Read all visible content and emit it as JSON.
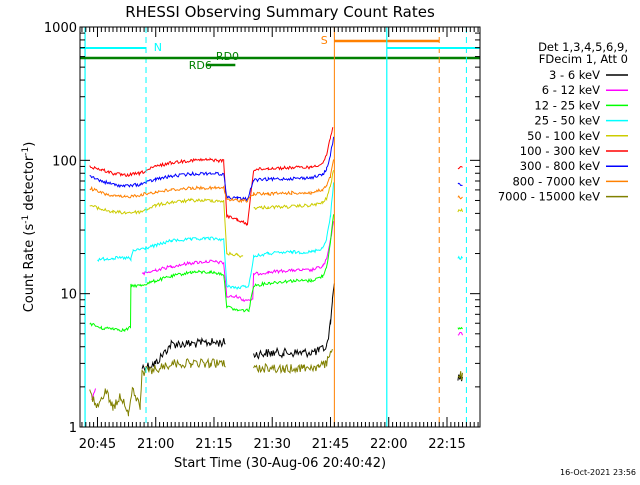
{
  "chart_data": {
    "type": "line",
    "title": "RHESSI Observing Summary Count Rates",
    "xlabel": "Start Time (30-Aug-06 20:40:42)",
    "ylabel_main": "Count Rate (s",
    "ylabel_sup1": "-1",
    "ylabel_mid": " detector",
    "ylabel_sup2": "-1",
    "ylabel_end": ")",
    "yscale": "log",
    "ylim": [
      1,
      1000
    ],
    "xlim_minutes": [
      -2.5,
      100.5
    ],
    "x_unit": "minutes after 20:43 UT",
    "yticks": [
      {
        "value": 1,
        "label": "1"
      },
      {
        "value": 10,
        "label": "10"
      },
      {
        "value": 100,
        "label": "100"
      },
      {
        "value": 1000,
        "label": "1000"
      }
    ],
    "xticks": [
      {
        "value": 2,
        "label": "20:45"
      },
      {
        "value": 17,
        "label": "21:00"
      },
      {
        "value": 32,
        "label": "21:15"
      },
      {
        "value": 47,
        "label": "21:30"
      },
      {
        "value": 62,
        "label": "21:45"
      },
      {
        "value": 77,
        "label": "22:00"
      },
      {
        "value": 92,
        "label": "22:15"
      }
    ],
    "legend_header": [
      "Det 1,3,4,5,6,9,",
      "FDecim 1, Att 0"
    ],
    "legend_placement": "right",
    "series": [
      {
        "name": "3 - 6 keV",
        "color": "#000000",
        "points": [
          [
            0.0,
            null
          ],
          [
            13.4,
            null
          ],
          [
            13.5,
            2.8
          ],
          [
            17,
            3.0
          ],
          [
            21,
            4.2
          ],
          [
            26,
            4.2
          ],
          [
            31,
            4.3
          ],
          [
            35,
            4.3
          ],
          [
            35.8,
            null
          ],
          [
            42.1,
            null
          ],
          [
            42.2,
            3.5
          ],
          [
            46,
            3.6
          ],
          [
            50,
            3.6
          ],
          [
            55,
            3.6
          ],
          [
            59,
            3.7
          ],
          [
            61,
            4.0
          ],
          [
            62,
            6.0
          ],
          [
            62.5,
            9.0
          ],
          [
            63,
            12.0
          ],
          [
            63.2,
            null
          ],
          [
            94.6,
            null
          ],
          [
            94.8,
            2.4
          ],
          [
            96,
            2.3
          ]
        ]
      },
      {
        "name": "6 - 12 keV",
        "color": "#ff00ff",
        "points": [
          [
            0.5,
            1.6
          ],
          [
            1.5,
            2.0
          ],
          [
            2.0,
            null
          ],
          [
            13.4,
            null
          ],
          [
            13.5,
            14.0
          ],
          [
            17,
            15.0
          ],
          [
            21,
            16.0
          ],
          [
            26,
            17.0
          ],
          [
            31,
            17.5
          ],
          [
            34.5,
            17.0
          ],
          [
            35.3,
            9.5
          ],
          [
            38,
            9.5
          ],
          [
            39.5,
            9.0
          ],
          [
            42,
            9.0
          ],
          [
            42.2,
            14.0
          ],
          [
            46,
            14.5
          ],
          [
            52,
            15.0
          ],
          [
            57,
            15.0
          ],
          [
            60,
            16.0
          ],
          [
            61,
            18.0
          ],
          [
            62,
            25.0
          ],
          [
            62.8,
            35.0
          ],
          [
            63.0,
            null
          ],
          [
            94.6,
            null
          ],
          [
            94.8,
            5.0
          ],
          [
            96,
            5.0
          ]
        ]
      },
      {
        "name": "12 - 25 keV",
        "color": "#00ff00",
        "points": [
          [
            0.0,
            6.0
          ],
          [
            3,
            5.5
          ],
          [
            6,
            5.5
          ],
          [
            9,
            5.3
          ],
          [
            10.5,
            5.6
          ],
          [
            10.6,
            11.5
          ],
          [
            13,
            11.5
          ],
          [
            17,
            12.5
          ],
          [
            21,
            13.5
          ],
          [
            26,
            14.5
          ],
          [
            31,
            14.5
          ],
          [
            34.5,
            14.0
          ],
          [
            35.3,
            8.0
          ],
          [
            38,
            7.5
          ],
          [
            41,
            7.5
          ],
          [
            42.2,
            11.5
          ],
          [
            46,
            12.0
          ],
          [
            52,
            12.5
          ],
          [
            57,
            12.5
          ],
          [
            60,
            13.5
          ],
          [
            61,
            16.0
          ],
          [
            62,
            24.0
          ],
          [
            62.8,
            40.0
          ],
          [
            63.0,
            null
          ],
          [
            94.6,
            null
          ],
          [
            94.8,
            5.5
          ],
          [
            96,
            5.5
          ]
        ]
      },
      {
        "name": "25 - 50 keV",
        "color": "#00ffff",
        "points": [
          [
            0.0,
            null
          ],
          [
            1.5,
            null
          ],
          [
            2.0,
            18.0
          ],
          [
            6,
            18.5
          ],
          [
            10,
            18.5
          ],
          [
            10.6,
            18.0
          ],
          [
            11.2,
            21.0
          ],
          [
            13,
            21.5
          ],
          [
            17,
            23.0
          ],
          [
            21,
            25.0
          ],
          [
            26,
            25.5
          ],
          [
            31,
            26.0
          ],
          [
            34.5,
            25.5
          ],
          [
            35.3,
            11.5
          ],
          [
            38,
            11.0
          ],
          [
            41,
            11.5
          ],
          [
            42.2,
            19.0
          ],
          [
            46,
            20.0
          ],
          [
            52,
            20.5
          ],
          [
            57,
            20.5
          ],
          [
            60,
            22.0
          ],
          [
            61,
            26.0
          ],
          [
            62,
            38.0
          ],
          [
            62.8,
            70.0
          ],
          [
            63.0,
            null
          ],
          [
            94.6,
            null
          ],
          [
            94.8,
            18.5
          ],
          [
            96,
            18.5
          ]
        ]
      },
      {
        "name": "50 - 100 keV",
        "color": "#cccc00",
        "points": [
          [
            0.0,
            46.0
          ],
          [
            3,
            43.0
          ],
          [
            6,
            41.0
          ],
          [
            9,
            40.5
          ],
          [
            13,
            41.0
          ],
          [
            17,
            46.0
          ],
          [
            21,
            48.5
          ],
          [
            26,
            50.0
          ],
          [
            31,
            50.0
          ],
          [
            34.5,
            49.5
          ],
          [
            35.3,
            20.0
          ],
          [
            38,
            19.5
          ],
          [
            39.5,
            19.0
          ],
          [
            40.6,
            null
          ],
          [
            42.2,
            44.0
          ],
          [
            46,
            44.5
          ],
          [
            52,
            45.0
          ],
          [
            57,
            46.0
          ],
          [
            60,
            48.0
          ],
          [
            61,
            52.0
          ],
          [
            62,
            64.0
          ],
          [
            62.8,
            85.0
          ],
          [
            63.0,
            null
          ],
          [
            94.6,
            null
          ],
          [
            94.8,
            42.0
          ],
          [
            96,
            42.0
          ]
        ]
      },
      {
        "name": "100 - 300 keV",
        "color": "#ff0000",
        "points": [
          [
            0.0,
            90.0
          ],
          [
            3,
            85.0
          ],
          [
            6,
            80.0
          ],
          [
            9,
            77.0
          ],
          [
            13,
            80.0
          ],
          [
            17,
            90.0
          ],
          [
            21,
            96.0
          ],
          [
            26,
            100.0
          ],
          [
            31,
            101.0
          ],
          [
            34.5,
            99.0
          ],
          [
            35.3,
            38.0
          ],
          [
            38,
            36.0
          ],
          [
            40.6,
            33.0
          ],
          [
            42.2,
            85.0
          ],
          [
            46,
            87.0
          ],
          [
            52,
            88.0
          ],
          [
            57,
            89.0
          ],
          [
            60,
            95.0
          ],
          [
            61,
            110.0
          ],
          [
            62,
            150.0
          ],
          [
            62.6,
            180.0
          ],
          [
            63.0,
            null
          ],
          [
            94.6,
            null
          ],
          [
            94.8,
            88.0
          ],
          [
            96,
            87.0
          ]
        ]
      },
      {
        "name": "300 - 800 keV",
        "color": "#0000ff",
        "points": [
          [
            0.0,
            76.0
          ],
          [
            3,
            70.0
          ],
          [
            6,
            66.0
          ],
          [
            9,
            64.0
          ],
          [
            13,
            66.0
          ],
          [
            17,
            72.0
          ],
          [
            21,
            76.0
          ],
          [
            26,
            79.0
          ],
          [
            31,
            80.0
          ],
          [
            34.5,
            79.0
          ],
          [
            35.3,
            53.0
          ],
          [
            38,
            52.0
          ],
          [
            40.6,
            51.0
          ],
          [
            42.2,
            71.0
          ],
          [
            46,
            72.0
          ],
          [
            52,
            73.0
          ],
          [
            57,
            74.0
          ],
          [
            60,
            78.0
          ],
          [
            61,
            86.0
          ],
          [
            62,
            110.0
          ],
          [
            62.8,
            150.0
          ],
          [
            63.0,
            null
          ],
          [
            94.6,
            null
          ],
          [
            94.8,
            66.0
          ],
          [
            96,
            65.0
          ]
        ]
      },
      {
        "name": "800 - 7000 keV",
        "color": "#ff8000",
        "points": [
          [
            0.0,
            62.0
          ],
          [
            3,
            57.0
          ],
          [
            6,
            54.0
          ],
          [
            9,
            53.0
          ],
          [
            13,
            55.0
          ],
          [
            17,
            58.0
          ],
          [
            21,
            60.0
          ],
          [
            26,
            62.0
          ],
          [
            31,
            62.0
          ],
          [
            34.5,
            62.0
          ],
          [
            35.3,
            51.0
          ],
          [
            38,
            50.0
          ],
          [
            40.6,
            50.0
          ],
          [
            42.2,
            56.0
          ],
          [
            46,
            56.0
          ],
          [
            52,
            57.0
          ],
          [
            57,
            57.0
          ],
          [
            60,
            60.0
          ],
          [
            61,
            64.0
          ],
          [
            62,
            76.0
          ],
          [
            62.8,
            100.0
          ],
          [
            63.0,
            null
          ],
          [
            94.6,
            null
          ],
          [
            94.8,
            53.0
          ],
          [
            96,
            52.0
          ]
        ]
      },
      {
        "name": "7000 - 15000 keV",
        "color": "#808000",
        "points": [
          [
            0.0,
            1.8
          ],
          [
            2,
            1.4
          ],
          [
            4,
            1.9
          ],
          [
            6,
            1.4
          ],
          [
            8,
            1.7
          ],
          [
            10,
            1.3
          ],
          [
            11,
            1.9
          ],
          [
            13,
            1.4
          ],
          [
            13.5,
            2.6
          ],
          [
            17,
            2.7
          ],
          [
            21,
            3.0
          ],
          [
            26,
            3.0
          ],
          [
            31,
            3.0
          ],
          [
            35,
            3.0
          ],
          [
            35.8,
            null
          ],
          [
            42.1,
            null
          ],
          [
            42.2,
            2.7
          ],
          [
            46,
            2.8
          ],
          [
            50,
            2.7
          ],
          [
            55,
            2.8
          ],
          [
            59,
            2.8
          ],
          [
            61,
            3.0
          ],
          [
            62.5,
            4.0
          ],
          [
            63.0,
            null
          ],
          [
            94.6,
            null
          ],
          [
            94.8,
            2.5
          ],
          [
            96,
            2.4
          ]
        ]
      }
    ],
    "markers": {
      "N_label": "N",
      "S_label": "S",
      "RD6_label": "RD6",
      "RD0_label": "RD0"
    },
    "timestamp": "16-Oct-2021 23:56"
  }
}
